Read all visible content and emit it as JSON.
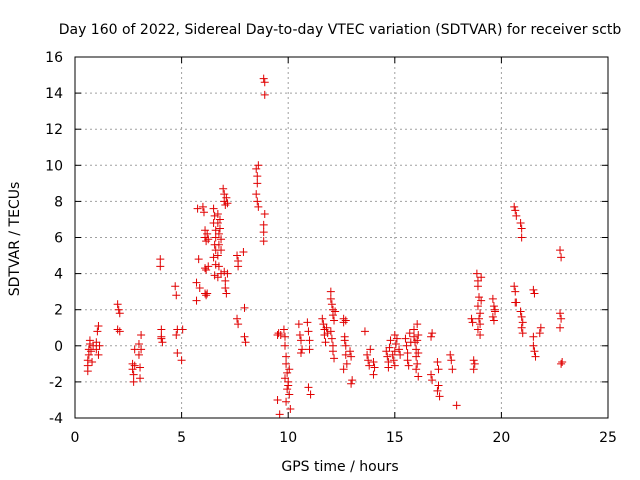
{
  "chart_data": {
    "type": "scatter",
    "title": "Day 160 of 2022, Sidereal Day-to-day VTEC variation (SDTVAR) for receiver sctb",
    "xlabel": "GPS time / hours",
    "ylabel": "SDTVAR / TECUs",
    "xlim": [
      0,
      25
    ],
    "ylim": [
      -4,
      16
    ],
    "xticks": [
      0,
      5,
      10,
      15,
      20,
      25
    ],
    "yticks": [
      -4,
      -2,
      0,
      2,
      4,
      6,
      8,
      10,
      12,
      14,
      16
    ],
    "grid": true,
    "marker": "+",
    "color": "#e00000",
    "series": [
      {
        "name": "SDTVAR",
        "points": [
          [
            0.6,
            -1.4
          ],
          [
            0.6,
            -1.1
          ],
          [
            0.6,
            -0.8
          ],
          [
            0.65,
            -0.5
          ],
          [
            0.65,
            -0.2
          ],
          [
            0.7,
            0.1
          ],
          [
            0.7,
            0.3
          ],
          [
            0.75,
            -0.3
          ],
          [
            0.8,
            -0.9
          ],
          [
            0.85,
            0.0
          ],
          [
            1.0,
            -0.2
          ],
          [
            1.0,
            0.2
          ],
          [
            1.05,
            0.8
          ],
          [
            1.1,
            1.1
          ],
          [
            1.1,
            -0.5
          ],
          [
            1.15,
            0.0
          ],
          [
            2.0,
            2.3
          ],
          [
            2.05,
            2.0
          ],
          [
            2.1,
            1.8
          ],
          [
            2.0,
            0.9
          ],
          [
            2.1,
            0.8
          ],
          [
            2.7,
            -1.0
          ],
          [
            2.7,
            -1.3
          ],
          [
            2.75,
            -1.6
          ],
          [
            2.75,
            -2.0
          ],
          [
            2.8,
            -0.2
          ],
          [
            2.8,
            -1.1
          ],
          [
            3.0,
            0.1
          ],
          [
            3.0,
            -0.5
          ],
          [
            3.05,
            -1.2
          ],
          [
            3.05,
            -1.8
          ],
          [
            3.1,
            0.6
          ],
          [
            3.1,
            -0.2
          ],
          [
            4.0,
            4.8
          ],
          [
            4.0,
            4.4
          ],
          [
            4.05,
            0.9
          ],
          [
            4.05,
            0.5
          ],
          [
            4.1,
            0.2
          ],
          [
            4.05,
            0.4
          ],
          [
            4.7,
            3.3
          ],
          [
            4.75,
            2.8
          ],
          [
            4.8,
            0.9
          ],
          [
            4.75,
            0.6
          ],
          [
            4.8,
            -0.4
          ],
          [
            5.0,
            -0.8
          ],
          [
            5.05,
            0.9
          ],
          [
            5.7,
            3.5
          ],
          [
            5.7,
            2.5
          ],
          [
            5.75,
            7.6
          ],
          [
            5.8,
            4.8
          ],
          [
            5.85,
            3.2
          ],
          [
            6.0,
            7.7
          ],
          [
            6.05,
            7.4
          ],
          [
            6.1,
            6.4
          ],
          [
            6.1,
            6.0
          ],
          [
            6.15,
            5.8
          ],
          [
            6.1,
            4.3
          ],
          [
            6.15,
            4.2
          ],
          [
            6.1,
            2.9
          ],
          [
            6.15,
            2.8
          ],
          [
            6.2,
            2.9
          ],
          [
            6.2,
            6.2
          ],
          [
            6.25,
            5.9
          ],
          [
            6.25,
            4.4
          ],
          [
            6.5,
            7.6
          ],
          [
            6.55,
            7.2
          ],
          [
            6.5,
            6.8
          ],
          [
            6.6,
            6.4
          ],
          [
            6.6,
            6.0
          ],
          [
            6.55,
            5.6
          ],
          [
            6.6,
            5.3
          ],
          [
            6.5,
            4.9
          ],
          [
            6.6,
            4.5
          ],
          [
            6.55,
            3.9
          ],
          [
            6.7,
            7.3
          ],
          [
            6.7,
            6.8
          ],
          [
            6.75,
            6.2
          ],
          [
            6.75,
            5.6
          ],
          [
            6.7,
            5.0
          ],
          [
            6.75,
            4.4
          ],
          [
            6.7,
            3.8
          ],
          [
            6.8,
            7.0
          ],
          [
            6.8,
            6.5
          ],
          [
            6.85,
            5.9
          ],
          [
            6.85,
            5.3
          ],
          [
            6.85,
            4.0
          ],
          [
            6.95,
            8.7
          ],
          [
            7.0,
            8.4
          ],
          [
            7.0,
            8.0
          ],
          [
            7.05,
            7.8
          ],
          [
            7.0,
            4.1
          ],
          [
            7.05,
            3.6
          ],
          [
            7.05,
            3.2
          ],
          [
            7.1,
            2.9
          ],
          [
            7.1,
            8.2
          ],
          [
            7.15,
            7.9
          ],
          [
            7.15,
            4.0
          ],
          [
            7.6,
            5.0
          ],
          [
            7.65,
            4.7
          ],
          [
            7.65,
            4.4
          ],
          [
            7.6,
            1.5
          ],
          [
            7.65,
            1.2
          ],
          [
            7.9,
            5.2
          ],
          [
            7.95,
            2.1
          ],
          [
            7.95,
            0.5
          ],
          [
            8.0,
            0.2
          ],
          [
            8.5,
            9.8
          ],
          [
            8.55,
            9.4
          ],
          [
            8.55,
            9.0
          ],
          [
            8.5,
            8.4
          ],
          [
            8.55,
            8.0
          ],
          [
            8.6,
            7.7
          ],
          [
            8.6,
            10.0
          ],
          [
            8.85,
            6.7
          ],
          [
            8.85,
            6.3
          ],
          [
            8.85,
            5.8
          ],
          [
            8.9,
            7.3
          ],
          [
            8.85,
            14.8
          ],
          [
            8.9,
            14.6
          ],
          [
            8.9,
            13.9
          ],
          [
            9.5,
            -3.0
          ],
          [
            9.5,
            0.6
          ],
          [
            9.55,
            0.7
          ],
          [
            9.65,
            0.6
          ],
          [
            9.6,
            -3.8
          ],
          [
            9.8,
            0.9
          ],
          [
            9.85,
            0.5
          ],
          [
            9.85,
            0.0
          ],
          [
            9.9,
            -0.6
          ],
          [
            9.9,
            -1.0
          ],
          [
            9.95,
            -1.5
          ],
          [
            9.85,
            -1.8
          ],
          [
            10.0,
            -2.0
          ],
          [
            10.0,
            -2.2
          ],
          [
            9.95,
            -2.4
          ],
          [
            10.05,
            -2.7
          ],
          [
            9.9,
            -3.1
          ],
          [
            10.1,
            -3.5
          ],
          [
            10.05,
            -1.3
          ],
          [
            10.5,
            1.2
          ],
          [
            10.55,
            0.6
          ],
          [
            10.6,
            0.3
          ],
          [
            10.65,
            -0.2
          ],
          [
            10.6,
            -0.4
          ],
          [
            10.9,
            1.3
          ],
          [
            10.95,
            0.8
          ],
          [
            11.0,
            0.3
          ],
          [
            11.0,
            -0.2
          ],
          [
            10.95,
            -2.3
          ],
          [
            11.05,
            -2.7
          ],
          [
            11.6,
            1.5
          ],
          [
            11.65,
            1.2
          ],
          [
            11.7,
            0.9
          ],
          [
            11.7,
            0.6
          ],
          [
            11.75,
            0.2
          ],
          [
            11.8,
            1.0
          ],
          [
            11.85,
            0.7
          ],
          [
            12.0,
            3.0
          ],
          [
            12.0,
            2.6
          ],
          [
            12.05,
            2.3
          ],
          [
            12.1,
            2.0
          ],
          [
            12.1,
            1.7
          ],
          [
            12.15,
            1.4
          ],
          [
            12.0,
            0.8
          ],
          [
            12.05,
            0.4
          ],
          [
            12.1,
            0.0
          ],
          [
            12.1,
            -0.3
          ],
          [
            12.15,
            -0.7
          ],
          [
            12.2,
            1.9
          ],
          [
            12.6,
            1.5
          ],
          [
            12.6,
            1.3
          ],
          [
            12.65,
            0.5
          ],
          [
            12.7,
            0.0
          ],
          [
            12.7,
            -0.5
          ],
          [
            12.75,
            -1.0
          ],
          [
            12.6,
            -1.3
          ],
          [
            12.65,
            0.3
          ],
          [
            12.7,
            1.4
          ],
          [
            12.9,
            -0.3
          ],
          [
            12.95,
            -0.6
          ],
          [
            13.0,
            -1.9
          ],
          [
            12.95,
            -2.1
          ],
          [
            13.6,
            0.8
          ],
          [
            13.7,
            -0.5
          ],
          [
            13.75,
            -0.8
          ],
          [
            13.8,
            -1.1
          ],
          [
            13.85,
            -0.2
          ],
          [
            14.0,
            -0.9
          ],
          [
            14.05,
            -1.2
          ],
          [
            14.0,
            -1.6
          ],
          [
            14.6,
            -0.3
          ],
          [
            14.65,
            -0.6
          ],
          [
            14.7,
            -0.9
          ],
          [
            14.7,
            -1.2
          ],
          [
            14.75,
            -0.1
          ],
          [
            14.8,
            0.3
          ],
          [
            14.9,
            -0.5
          ],
          [
            14.95,
            -0.8
          ],
          [
            15.0,
            -1.1
          ],
          [
            15.0,
            -0.3
          ],
          [
            15.05,
            0.1
          ],
          [
            15.1,
            0.4
          ],
          [
            15.0,
            0.6
          ],
          [
            15.2,
            -0.2
          ],
          [
            15.25,
            -0.5
          ],
          [
            15.5,
            0.4
          ],
          [
            15.55,
            0.0
          ],
          [
            15.6,
            -0.4
          ],
          [
            15.6,
            -0.8
          ],
          [
            15.65,
            -1.1
          ],
          [
            15.7,
            0.7
          ],
          [
            15.75,
            0.2
          ],
          [
            15.9,
            0.9
          ],
          [
            15.9,
            0.5
          ],
          [
            15.95,
            0.2
          ],
          [
            16.0,
            -0.2
          ],
          [
            16.0,
            -0.6
          ],
          [
            16.05,
            -1.0
          ],
          [
            16.0,
            -1.3
          ],
          [
            16.1,
            -1.7
          ],
          [
            16.05,
            0.3
          ],
          [
            16.1,
            0.6
          ],
          [
            16.1,
            -0.4
          ],
          [
            16.05,
            1.2
          ],
          [
            16.7,
            0.5
          ],
          [
            16.75,
            0.7
          ],
          [
            16.7,
            -1.6
          ],
          [
            16.75,
            -1.9
          ],
          [
            17.0,
            -0.9
          ],
          [
            17.05,
            -1.3
          ],
          [
            17.05,
            -2.2
          ],
          [
            17.0,
            -2.5
          ],
          [
            17.1,
            -2.8
          ],
          [
            17.6,
            -0.5
          ],
          [
            17.65,
            -0.8
          ],
          [
            17.7,
            -1.3
          ],
          [
            17.9,
            -3.3
          ],
          [
            18.6,
            1.5
          ],
          [
            18.65,
            1.3
          ],
          [
            18.7,
            -0.8
          ],
          [
            18.75,
            -1.0
          ],
          [
            18.7,
            -1.3
          ],
          [
            18.85,
            4.0
          ],
          [
            18.9,
            3.6
          ],
          [
            18.9,
            3.3
          ],
          [
            18.95,
            2.7
          ],
          [
            18.9,
            2.2
          ],
          [
            19.0,
            1.8
          ],
          [
            18.95,
            1.5
          ],
          [
            19.0,
            1.2
          ],
          [
            18.9,
            0.9
          ],
          [
            19.0,
            0.6
          ],
          [
            19.05,
            2.5
          ],
          [
            19.05,
            3.8
          ],
          [
            19.6,
            2.6
          ],
          [
            19.65,
            2.2
          ],
          [
            19.7,
            1.9
          ],
          [
            19.6,
            1.6
          ],
          [
            19.65,
            1.4
          ],
          [
            19.7,
            2.0
          ],
          [
            20.6,
            7.7
          ],
          [
            20.65,
            7.5
          ],
          [
            20.7,
            7.2
          ],
          [
            20.6,
            3.3
          ],
          [
            20.65,
            3.0
          ],
          [
            20.7,
            2.4
          ],
          [
            20.65,
            2.4
          ],
          [
            20.9,
            6.8
          ],
          [
            20.95,
            6.5
          ],
          [
            20.95,
            6.0
          ],
          [
            20.9,
            1.9
          ],
          [
            20.95,
            1.6
          ],
          [
            21.0,
            1.3
          ],
          [
            20.95,
            1.0
          ],
          [
            21.0,
            0.7
          ],
          [
            21.5,
            3.1
          ],
          [
            21.55,
            2.9
          ],
          [
            21.5,
            0.0
          ],
          [
            21.55,
            -0.3
          ],
          [
            21.6,
            -0.6
          ],
          [
            21.5,
            0.5
          ],
          [
            21.8,
            0.7
          ],
          [
            21.85,
            1.0
          ],
          [
            22.75,
            5.3
          ],
          [
            22.8,
            4.9
          ],
          [
            22.75,
            1.8
          ],
          [
            22.8,
            1.5
          ],
          [
            22.75,
            1.0
          ],
          [
            22.8,
            -1.0
          ],
          [
            22.85,
            -0.9
          ]
        ]
      }
    ]
  }
}
